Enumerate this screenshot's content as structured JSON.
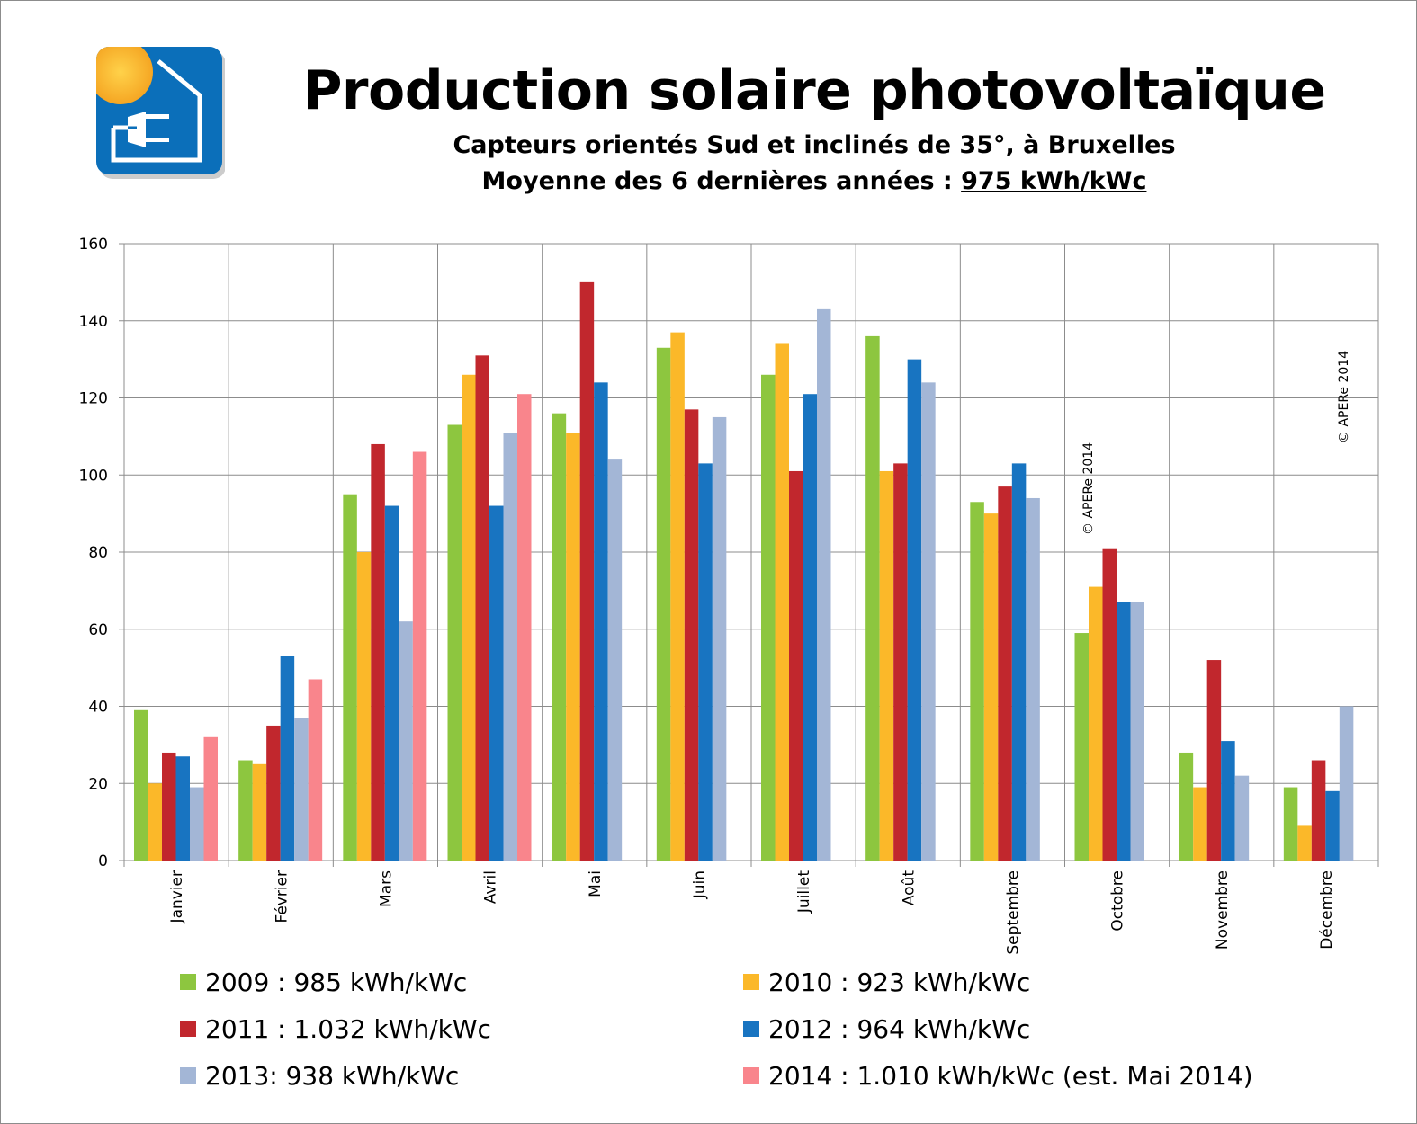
{
  "title": "Production solaire photovoltaïque",
  "subtitle_line1": "Capteurs orientés Sud et inclinés de 35°, à Bruxelles",
  "subtitle_line2_prefix": "Moyenne des 6 dernières années : ",
  "subtitle_line2_value": "975 kWh/kWc",
  "watermark": "© APERe 2014",
  "chart_data": {
    "type": "bar",
    "title": "Production solaire photovoltaïque",
    "xlabel": "",
    "ylabel": "",
    "ylim": [
      0,
      160
    ],
    "yticks": [
      0,
      20,
      40,
      60,
      80,
      100,
      120,
      140,
      160
    ],
    "grid": true,
    "legend_position": "bottom",
    "categories": [
      "Janvier",
      "Février",
      "Mars",
      "Avril",
      "Mai",
      "Juin",
      "Juillet",
      "Août",
      "Septembre",
      "Octobre",
      "Novembre",
      "Décembre"
    ],
    "series": [
      {
        "name": "2009 : 985 kWh/kWc",
        "color": "#8dc63f",
        "values": [
          39,
          26,
          95,
          113,
          116,
          133,
          126,
          136,
          93,
          59,
          28,
          19
        ]
      },
      {
        "name": "2010 : 923 kWh/kWc",
        "color": "#fbb829",
        "values": [
          20,
          25,
          80,
          126,
          111,
          137,
          134,
          101,
          90,
          71,
          19,
          9
        ]
      },
      {
        "name": "2011 : 1.032 kWh/kWc",
        "color": "#c1272d",
        "values": [
          28,
          35,
          108,
          131,
          150,
          117,
          101,
          103,
          97,
          81,
          52,
          26
        ]
      },
      {
        "name": "2012 : 964 kWh/kWc",
        "color": "#1874c1",
        "values": [
          27,
          53,
          92,
          92,
          124,
          103,
          121,
          130,
          103,
          67,
          31,
          18
        ]
      },
      {
        "name": "2013: 938 kWh/kWc",
        "color": "#a3b6d6",
        "values": [
          19,
          37,
          62,
          111,
          104,
          115,
          143,
          124,
          94,
          67,
          22,
          40
        ]
      },
      {
        "name": "2014 : 1.010 kWh/kWc (est. Mai 2014)",
        "color": "#f9858c",
        "values": [
          32,
          47,
          106,
          121,
          null,
          null,
          null,
          null,
          null,
          null,
          null,
          null
        ]
      }
    ]
  }
}
